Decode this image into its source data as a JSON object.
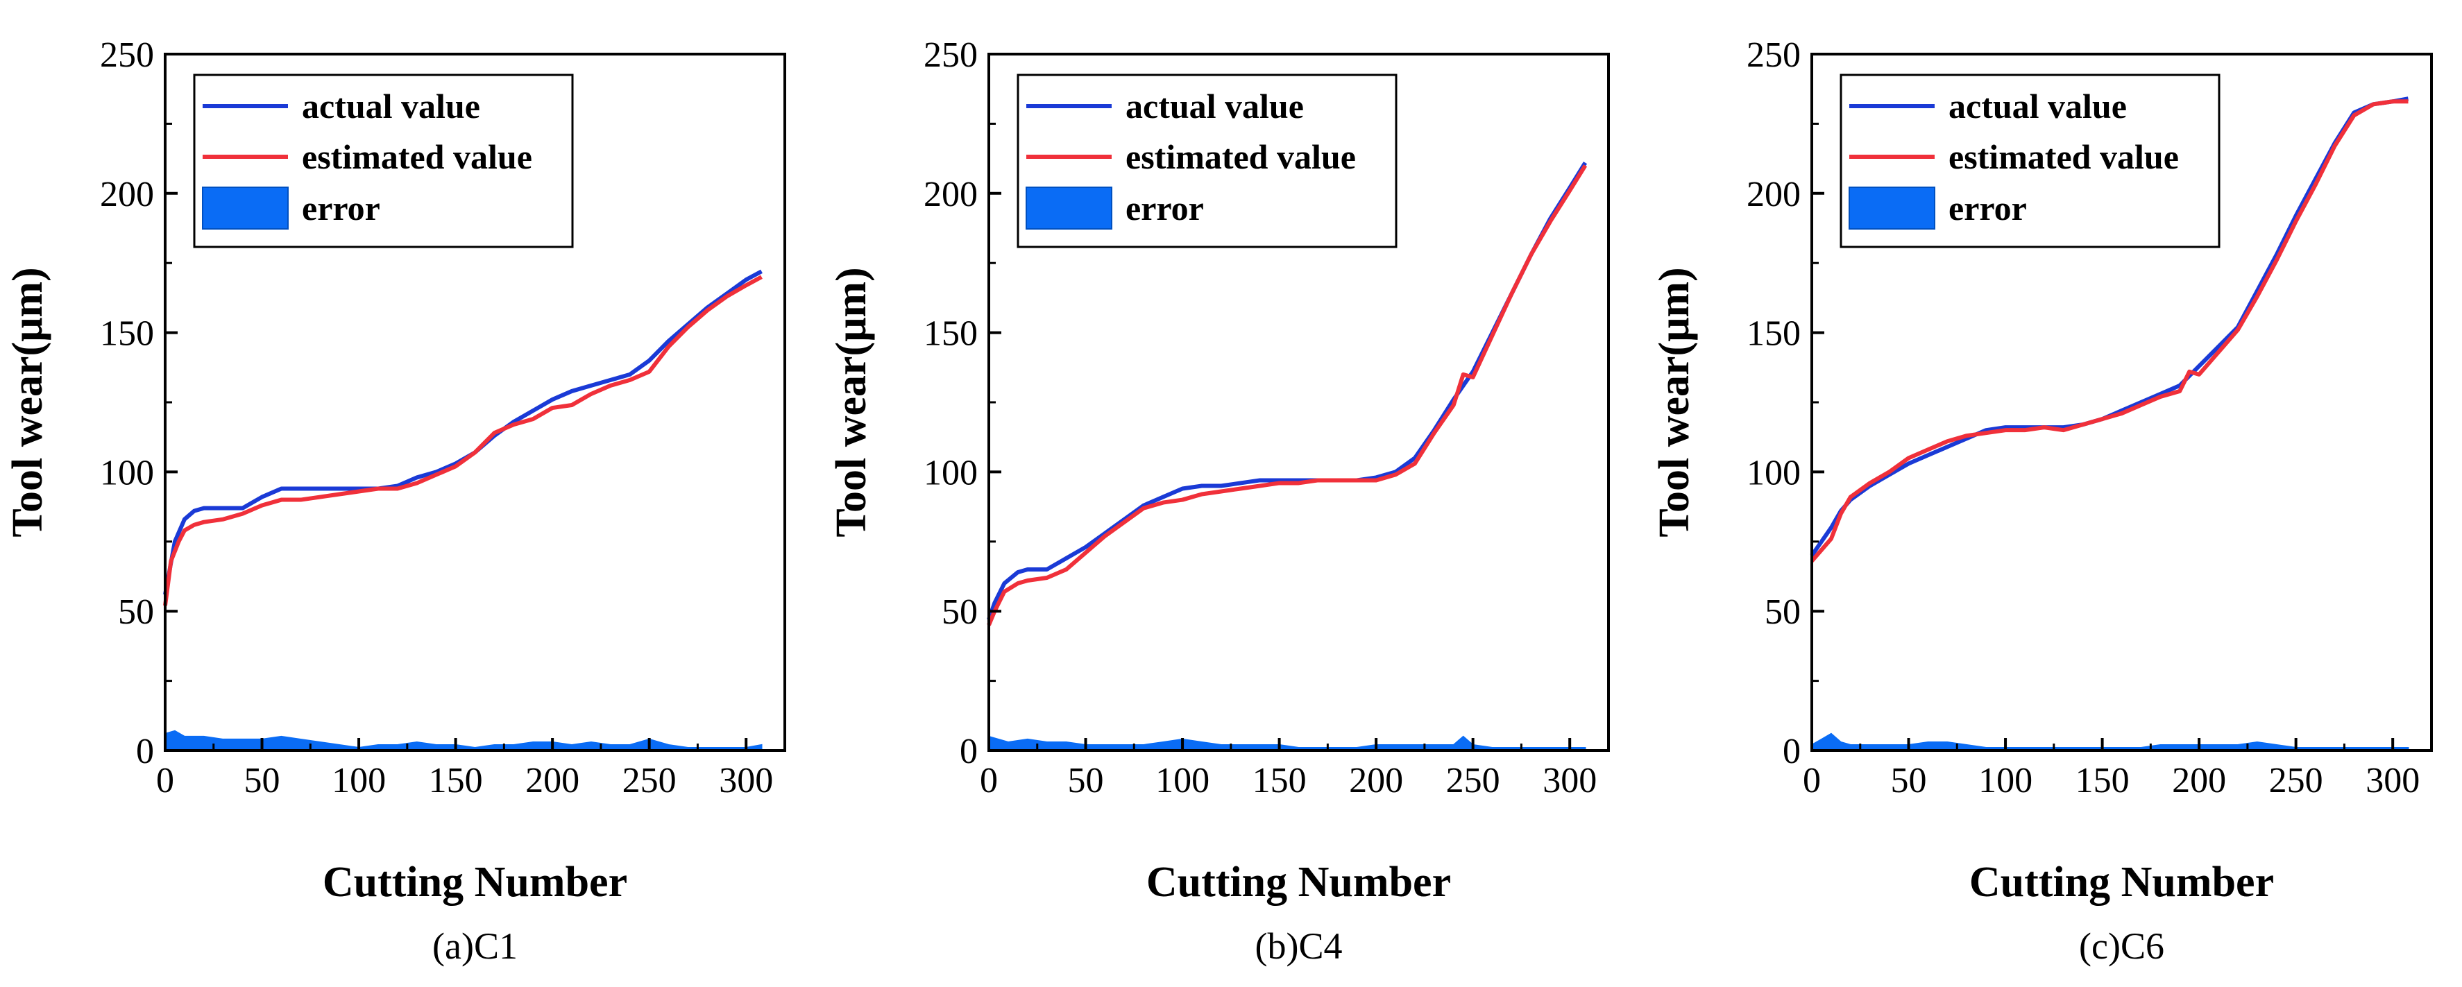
{
  "figure": {
    "colors": {
      "actual": "#1a3ad6",
      "estimated": "#f0303a",
      "error": "#0a6cf5",
      "axis": "#000000"
    }
  },
  "chart_data": [
    {
      "type": "line",
      "caption": "(a)C1",
      "xlabel": "Cutting Number",
      "ylabel": "Tool wear(μm)",
      "xlim": [
        0,
        320
      ],
      "ylim": [
        0,
        250
      ],
      "xticks": [
        0,
        50,
        100,
        150,
        200,
        250,
        300
      ],
      "yticks": [
        0,
        50,
        100,
        150,
        200,
        250
      ],
      "legend": {
        "position": "top-left",
        "entries": [
          "actual value",
          "estimated value",
          "error"
        ]
      },
      "series": [
        {
          "name": "actual value",
          "kind": "line",
          "x": [
            0,
            5,
            10,
            15,
            20,
            30,
            40,
            50,
            60,
            70,
            80,
            90,
            100,
            110,
            120,
            130,
            140,
            150,
            160,
            170,
            180,
            190,
            200,
            210,
            220,
            230,
            240,
            250,
            260,
            270,
            280,
            290,
            300,
            308
          ],
          "y": [
            56,
            75,
            83,
            86,
            87,
            87,
            87,
            91,
            94,
            94,
            94,
            94,
            94,
            94,
            95,
            98,
            100,
            103,
            107,
            113,
            118,
            122,
            126,
            129,
            131,
            133,
            135,
            140,
            147,
            153,
            159,
            164,
            169,
            172
          ]
        },
        {
          "name": "estimated value",
          "kind": "line",
          "x": [
            0,
            3,
            7,
            10,
            15,
            20,
            30,
            40,
            50,
            60,
            70,
            80,
            90,
            100,
            110,
            120,
            130,
            140,
            150,
            160,
            170,
            180,
            190,
            200,
            210,
            220,
            230,
            240,
            250,
            260,
            270,
            280,
            290,
            300,
            308
          ],
          "y": [
            52,
            68,
            75,
            79,
            81,
            82,
            83,
            85,
            88,
            90,
            90,
            91,
            92,
            93,
            94,
            94,
            96,
            99,
            102,
            107,
            114,
            117,
            119,
            123,
            124,
            128,
            131,
            133,
            136,
            145,
            152,
            158,
            163,
            167,
            170
          ]
        },
        {
          "name": "error",
          "kind": "area",
          "x": [
            0,
            5,
            10,
            20,
            30,
            40,
            50,
            60,
            70,
            80,
            90,
            100,
            110,
            120,
            130,
            140,
            150,
            160,
            170,
            180,
            190,
            200,
            210,
            220,
            230,
            240,
            250,
            260,
            270,
            280,
            290,
            300,
            308
          ],
          "y": [
            6,
            7,
            5,
            5,
            4,
            4,
            4,
            5,
            4,
            3,
            2,
            1,
            2,
            2,
            3,
            2,
            2,
            1,
            2,
            2,
            3,
            3,
            2,
            3,
            2,
            2,
            4,
            2,
            1,
            1,
            1,
            1,
            2
          ]
        }
      ]
    },
    {
      "type": "line",
      "caption": "(b)C4",
      "xlabel": "Cutting Number",
      "ylabel": "Tool wear(μm)",
      "xlim": [
        0,
        320
      ],
      "ylim": [
        0,
        250
      ],
      "xticks": [
        0,
        50,
        100,
        150,
        200,
        250,
        300
      ],
      "yticks": [
        0,
        50,
        100,
        150,
        200,
        250
      ],
      "legend": {
        "position": "top-left",
        "entries": [
          "actual value",
          "estimated value",
          "error"
        ]
      },
      "series": [
        {
          "name": "actual value",
          "kind": "line",
          "x": [
            0,
            3,
            8,
            15,
            20,
            30,
            40,
            50,
            60,
            70,
            80,
            90,
            100,
            110,
            120,
            130,
            140,
            150,
            160,
            170,
            180,
            190,
            200,
            210,
            220,
            230,
            240,
            250,
            260,
            270,
            280,
            290,
            300,
            308
          ],
          "y": [
            47,
            53,
            60,
            64,
            65,
            65,
            69,
            73,
            78,
            83,
            88,
            91,
            94,
            95,
            95,
            96,
            97,
            97,
            97,
            97,
            97,
            97,
            98,
            100,
            105,
            115,
            126,
            136,
            150,
            164,
            178,
            191,
            202,
            211
          ]
        },
        {
          "name": "estimated value",
          "kind": "line",
          "x": [
            0,
            3,
            8,
            15,
            20,
            30,
            40,
            50,
            60,
            70,
            80,
            90,
            100,
            110,
            120,
            130,
            140,
            150,
            160,
            170,
            180,
            190,
            200,
            210,
            220,
            230,
            240,
            245,
            250,
            260,
            270,
            280,
            290,
            300,
            308
          ],
          "y": [
            45,
            50,
            57,
            60,
            61,
            62,
            65,
            71,
            77,
            82,
            87,
            89,
            90,
            92,
            93,
            94,
            95,
            96,
            96,
            97,
            97,
            97,
            97,
            99,
            103,
            114,
            124,
            135,
            134,
            149,
            164,
            178,
            190,
            201,
            210
          ]
        },
        {
          "name": "error",
          "kind": "area",
          "x": [
            0,
            5,
            10,
            20,
            30,
            40,
            50,
            60,
            70,
            80,
            90,
            100,
            110,
            120,
            130,
            140,
            150,
            160,
            170,
            180,
            190,
            200,
            210,
            220,
            230,
            240,
            245,
            250,
            260,
            270,
            280,
            290,
            300,
            308
          ],
          "y": [
            5,
            4,
            3,
            4,
            3,
            3,
            2,
            2,
            2,
            2,
            3,
            4,
            3,
            2,
            2,
            2,
            2,
            1,
            1,
            1,
            1,
            2,
            2,
            2,
            2,
            2,
            5,
            2,
            1,
            1,
            1,
            1,
            1,
            1
          ]
        }
      ]
    },
    {
      "type": "line",
      "caption": "(c)C6",
      "xlabel": "Cutting Number",
      "ylabel": "Tool wear(μm)",
      "xlim": [
        0,
        320
      ],
      "ylim": [
        0,
        250
      ],
      "xticks": [
        0,
        50,
        100,
        150,
        200,
        250,
        300
      ],
      "yticks": [
        0,
        50,
        100,
        150,
        200,
        250
      ],
      "legend": {
        "position": "top-left",
        "entries": [
          "actual value",
          "estimated value",
          "error"
        ]
      },
      "series": [
        {
          "name": "actual value",
          "kind": "line",
          "x": [
            0,
            5,
            10,
            15,
            20,
            30,
            40,
            50,
            60,
            70,
            80,
            90,
            100,
            110,
            120,
            130,
            140,
            150,
            160,
            170,
            180,
            190,
            200,
            210,
            220,
            230,
            240,
            250,
            260,
            270,
            280,
            290,
            300,
            308
          ],
          "y": [
            70,
            75,
            80,
            86,
            90,
            95,
            99,
            103,
            106,
            109,
            112,
            115,
            116,
            116,
            116,
            116,
            117,
            119,
            122,
            125,
            128,
            131,
            138,
            145,
            152,
            165,
            178,
            192,
            205,
            218,
            229,
            232,
            233,
            234
          ]
        },
        {
          "name": "estimated value",
          "kind": "line",
          "x": [
            0,
            5,
            10,
            15,
            20,
            30,
            40,
            50,
            60,
            70,
            80,
            90,
            100,
            110,
            120,
            130,
            140,
            150,
            160,
            170,
            180,
            190,
            195,
            200,
            210,
            220,
            230,
            240,
            250,
            260,
            270,
            280,
            290,
            300,
            308
          ],
          "y": [
            68,
            72,
            76,
            85,
            91,
            96,
            100,
            105,
            108,
            111,
            113,
            114,
            115,
            115,
            116,
            115,
            117,
            119,
            121,
            124,
            127,
            129,
            136,
            135,
            143,
            151,
            163,
            176,
            190,
            203,
            217,
            228,
            232,
            233,
            233
          ]
        },
        {
          "name": "error",
          "kind": "area",
          "x": [
            0,
            5,
            10,
            15,
            20,
            30,
            40,
            50,
            60,
            70,
            80,
            90,
            100,
            110,
            120,
            130,
            140,
            150,
            160,
            170,
            180,
            190,
            200,
            210,
            220,
            230,
            240,
            250,
            260,
            270,
            280,
            290,
            300,
            308
          ],
          "y": [
            2,
            4,
            6,
            3,
            2,
            2,
            2,
            2,
            3,
            3,
            2,
            1,
            1,
            1,
            1,
            1,
            1,
            1,
            1,
            1,
            2,
            2,
            2,
            2,
            2,
            3,
            2,
            1,
            1,
            1,
            1,
            1,
            1,
            1
          ]
        }
      ]
    }
  ]
}
